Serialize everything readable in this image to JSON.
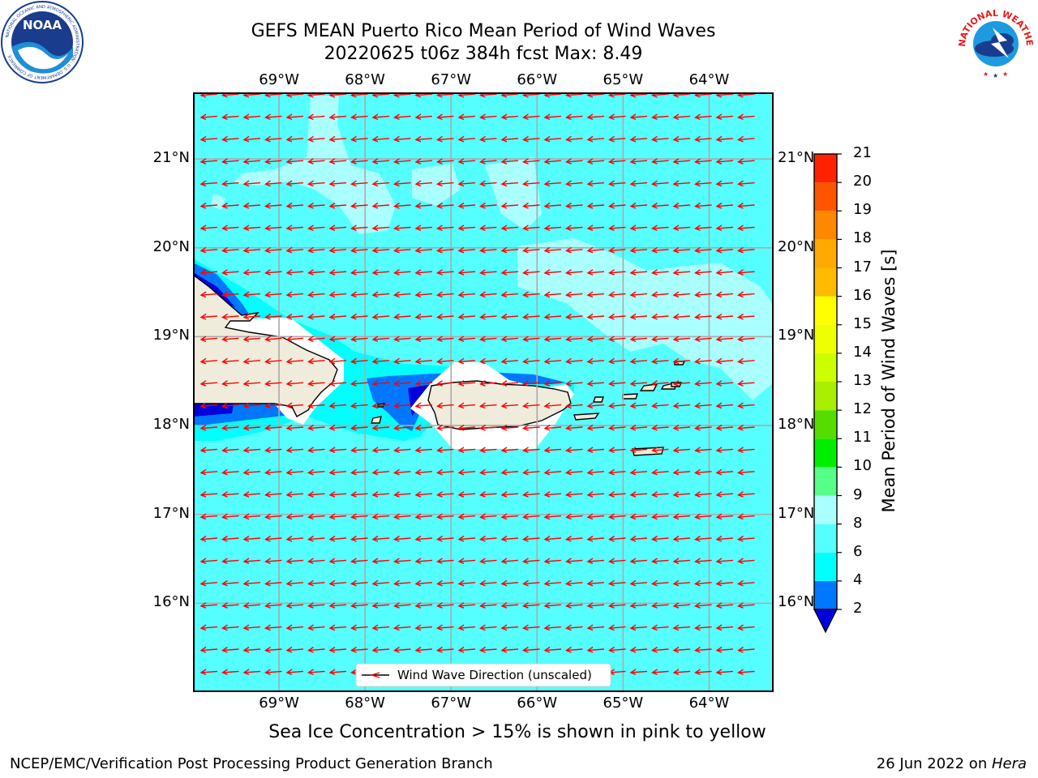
{
  "title": {
    "line1": "GEFS MEAN Puerto Rico Mean Period of Wind Waves",
    "line2": "20220625 t06z 384h fcst   Max: 8.49"
  },
  "logos": {
    "left": "noaa-logo",
    "left_text": "NOAA",
    "left_ring_text": "NATIONAL OCEANIC AND ATMOSPHERIC ADMINISTRATION · U.S. DEPARTMENT OF COMMERCE",
    "right": "national-weather-service-logo",
    "right_ring_text": "NATIONAL WEATHER SERVICE"
  },
  "map": {
    "lon_labels": [
      "69°W",
      "68°W",
      "67°W",
      "66°W",
      "65°W",
      "64°W"
    ],
    "lat_labels": [
      "21°N",
      "20°N",
      "19°N",
      "18°N",
      "17°N",
      "16°N"
    ],
    "lon_values": [
      -69,
      -68,
      -67,
      -66,
      -65,
      -64
    ],
    "lat_values": [
      21,
      20,
      19,
      18,
      17,
      16
    ],
    "extent": {
      "lon_min": -70,
      "lon_max": -63.25,
      "lat_min": 15,
      "lat_max": 21.75
    },
    "grid": true,
    "legend_label": "Wind Wave Direction (unscaled)",
    "arrow_color": "#ff0000",
    "land_color": "#efecdc",
    "ocean_base_color": "#55ffff"
  },
  "colorbar": {
    "label": "Mean Period of Wind Waves [s]",
    "ticks": [
      "2",
      "4",
      "6",
      "8",
      "9",
      "10",
      "11",
      "12",
      "13",
      "14",
      "15",
      "16",
      "17",
      "18",
      "19",
      "20",
      "21"
    ],
    "levels": [
      2,
      4,
      6,
      8,
      9,
      10,
      11,
      12,
      13,
      14,
      15,
      16,
      17,
      18,
      19,
      20,
      21
    ],
    "colors": [
      "#0077ff",
      "#00ffff",
      "#55ffff",
      "#aaffff",
      "#55ff88",
      "#00ee00",
      "#55dd00",
      "#aaee00",
      "#ccff00",
      "#eeff00",
      "#ffff00",
      "#ffbb00",
      "#ffaa00",
      "#ff8800",
      "#ff5500",
      "#ff2200"
    ],
    "under_color": "#0000dd"
  },
  "ice_note": "Sea Ice Concentration > 15% is shown in pink to yellow",
  "footer": {
    "left": "NCEP/EMC/Verification Post Processing Product Generation Branch",
    "right_date": "26 Jun 2022 on ",
    "right_host": "Hera"
  }
}
